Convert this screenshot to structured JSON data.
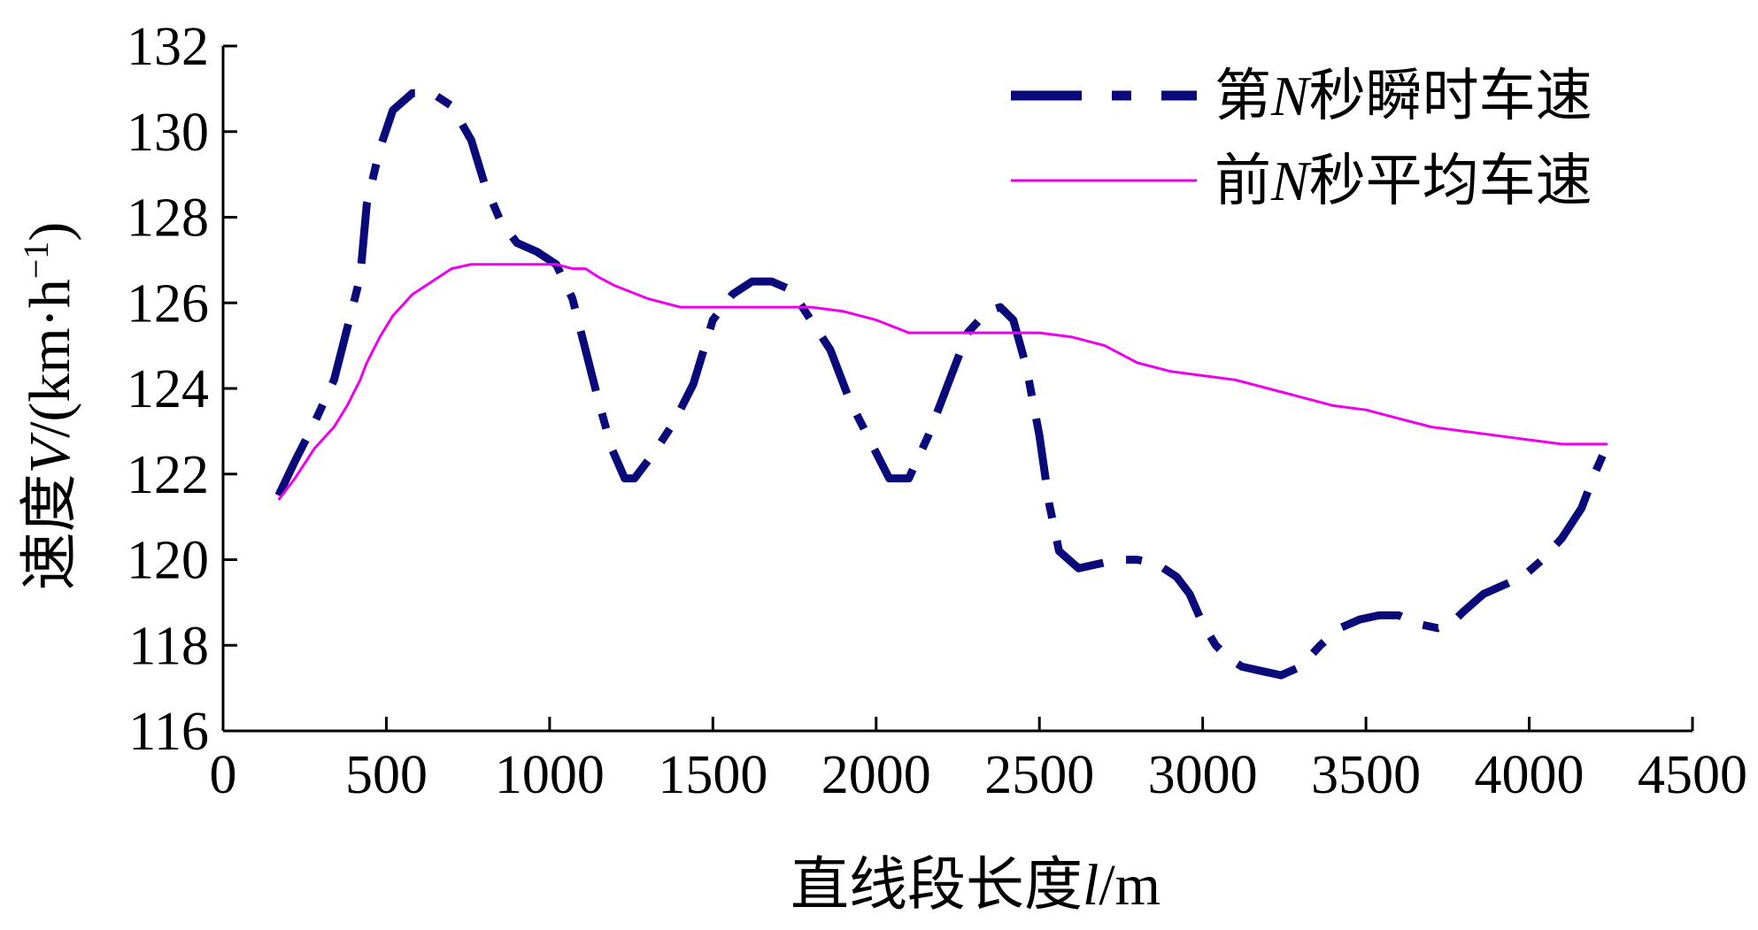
{
  "chart_data": {
    "type": "line",
    "xlabel": {
      "pre": "直线段长度",
      "var": "l",
      "post": "/m"
    },
    "ylabel": {
      "pre": "速度",
      "var": "V",
      "post": "/(km·h",
      "sup": "−1",
      "close": ")"
    },
    "xlim": [
      0,
      4500
    ],
    "ylim": [
      116,
      132
    ],
    "xticks": [
      0,
      500,
      1000,
      1500,
      2000,
      2500,
      3000,
      3500,
      4000,
      4500
    ],
    "yticks": [
      116,
      118,
      120,
      122,
      124,
      126,
      128,
      130,
      132
    ],
    "grid": false,
    "legend_position": "top-right",
    "series": [
      {
        "name": "第N秒瞬时车速",
        "legend": {
          "pre": "第",
          "var": "N",
          "post": "秒瞬时车速"
        },
        "color": "#0a0a7a",
        "style": "dash-dot",
        "x": [
          170,
          220,
          280,
          340,
          380,
          420,
          440,
          480,
          520,
          580,
          640,
          700,
          760,
          800,
          850,
          900,
          960,
          1020,
          1070,
          1110,
          1150,
          1190,
          1230,
          1260,
          1320,
          1380,
          1440,
          1500,
          1560,
          1620,
          1680,
          1740,
          1800,
          1860,
          1920,
          1980,
          2040,
          2100,
          2160,
          2220,
          2280,
          2340,
          2380,
          2420,
          2460,
          2500,
          2530,
          2560,
          2590,
          2620,
          2680,
          2740,
          2800,
          2860,
          2920,
          2960,
          3000,
          3040,
          3080,
          3120,
          3180,
          3240,
          3300,
          3360,
          3420,
          3480,
          3540,
          3600,
          3660,
          3720,
          3760,
          3800,
          3860,
          3920,
          3980,
          4040,
          4100,
          4160,
          4200,
          4240
        ],
        "y": [
          121.5,
          122.3,
          123.2,
          124.2,
          125.4,
          126.6,
          128.3,
          129.6,
          130.5,
          130.9,
          130.9,
          130.6,
          129.8,
          128.8,
          127.9,
          127.4,
          127.2,
          126.9,
          126.1,
          124.9,
          123.7,
          122.6,
          121.9,
          121.9,
          122.5,
          123.2,
          124.1,
          125.6,
          126.2,
          126.5,
          126.5,
          126.3,
          125.6,
          124.9,
          123.7,
          122.8,
          121.9,
          121.9,
          122.9,
          124.1,
          125.3,
          125.8,
          125.9,
          125.6,
          124.5,
          122.9,
          121.3,
          120.2,
          120.0,
          119.8,
          119.9,
          120.0,
          120.0,
          119.9,
          119.6,
          119.2,
          118.5,
          118.0,
          117.7,
          117.5,
          117.4,
          117.3,
          117.5,
          118.0,
          118.4,
          118.6,
          118.7,
          118.7,
          118.5,
          118.4,
          118.5,
          118.8,
          119.2,
          119.4,
          119.6,
          120.0,
          120.5,
          121.2,
          122.0,
          122.7
        ]
      },
      {
        "name": "前N秒平均车速",
        "legend": {
          "pre": "前",
          "var": "N",
          "post": "秒平均车速"
        },
        "color": "#ee00ee",
        "style": "solid",
        "x": [
          170,
          220,
          280,
          340,
          380,
          420,
          440,
          480,
          520,
          580,
          640,
          700,
          760,
          800,
          850,
          900,
          960,
          1020,
          1070,
          1110,
          1150,
          1200,
          1300,
          1400,
          1500,
          1600,
          1700,
          1800,
          1900,
          2000,
          2100,
          2200,
          2300,
          2400,
          2500,
          2600,
          2700,
          2800,
          2900,
          3000,
          3100,
          3200,
          3300,
          3400,
          3500,
          3600,
          3700,
          3800,
          3900,
          4000,
          4100,
          4200,
          4240
        ],
        "y": [
          121.4,
          121.9,
          122.6,
          123.1,
          123.6,
          124.2,
          124.6,
          125.2,
          125.7,
          126.2,
          126.5,
          126.8,
          126.9,
          126.9,
          126.9,
          126.9,
          126.9,
          126.9,
          126.8,
          126.8,
          126.6,
          126.4,
          126.1,
          125.9,
          125.9,
          125.9,
          125.9,
          125.9,
          125.8,
          125.6,
          125.3,
          125.3,
          125.3,
          125.3,
          125.3,
          125.2,
          125.0,
          124.6,
          124.4,
          124.3,
          124.2,
          124.0,
          123.8,
          123.6,
          123.5,
          123.3,
          123.1,
          123.0,
          122.9,
          122.8,
          122.7,
          122.7,
          122.7
        ]
      }
    ]
  }
}
